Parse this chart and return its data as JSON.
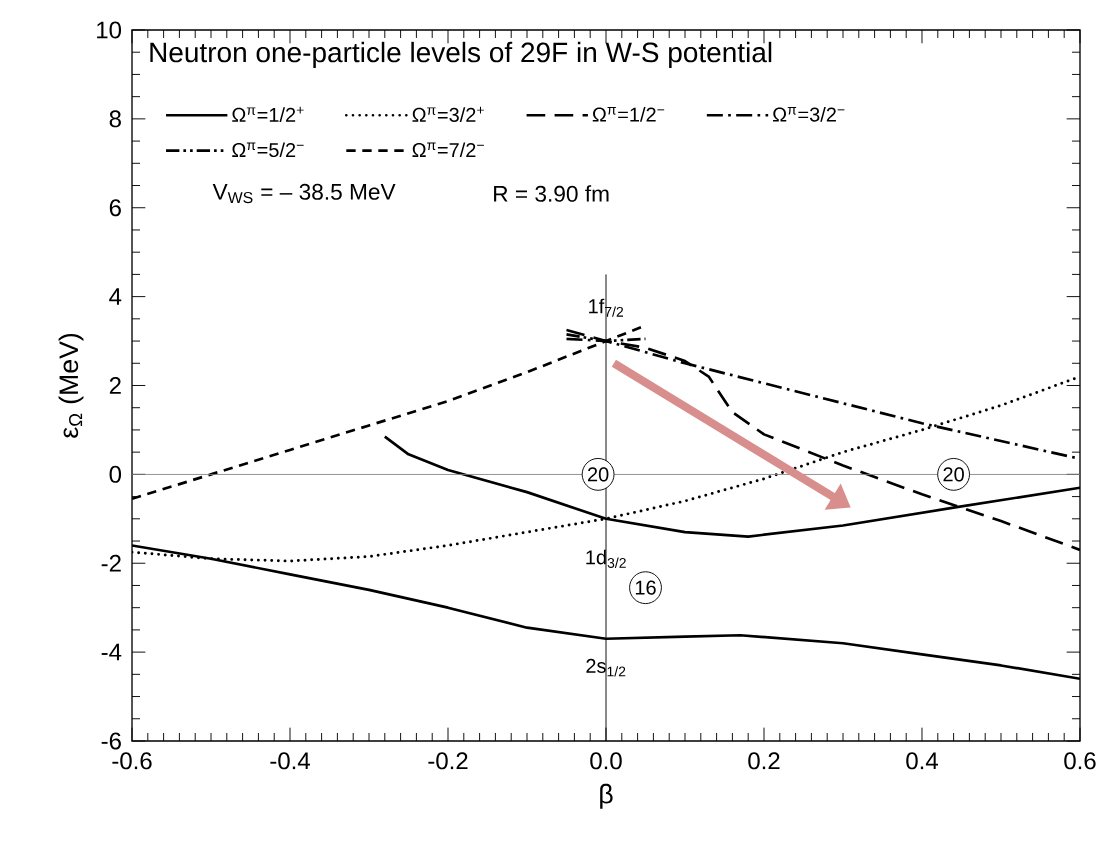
{
  "chart_data": {
    "type": "line",
    "title": "Neutron one-particle levels of 29F in W-S potential",
    "xlabel": "β",
    "ylabel": "ε$_{Ω}$  (MeV)",
    "xlim": [
      -0.6,
      0.6
    ],
    "ylim": [
      -6,
      10
    ],
    "xticks": [
      -0.6,
      -0.4,
      -0.2,
      {
        "value": 0,
        "label": "0.0"
      },
      0.2,
      0.4,
      0.6
    ],
    "yticks": [
      -6,
      -4,
      -2,
      0,
      2,
      4,
      6,
      8,
      10
    ],
    "grid": false,
    "legend": "top",
    "marker": "none",
    "series": [
      {
        "name": "Ω$^{π}$=1/2$^{+}$",
        "color": "#000000",
        "line_style": "solid",
        "x": [
          -0.6,
          -0.5,
          -0.4,
          -0.3,
          -0.2,
          -0.1,
          0,
          0.1,
          0.17,
          0.3,
          0.4,
          0.5,
          0.6,
          null,
          -0.28,
          -0.25,
          -0.2,
          -0.1,
          0,
          0.1,
          0.18,
          0.3,
          0.44,
          0.6
        ],
        "values": [
          -1.6,
          -1.9,
          -2.25,
          -2.6,
          -3.0,
          -3.45,
          -3.7,
          -3.65,
          -3.62,
          -3.8,
          -4.05,
          -4.3,
          -4.6,
          null,
          0.85,
          0.45,
          0.1,
          -0.4,
          -1.0,
          -1.3,
          -1.4,
          -1.15,
          -0.75,
          -0.3
        ]
      },
      {
        "name": "Ω$^{π}$=3/2$^{+}$",
        "color": "#000000",
        "line_style": "dotted",
        "x": [
          -0.6,
          -0.5,
          -0.4,
          -0.3,
          -0.2,
          -0.1,
          0,
          0.1,
          0.2,
          0.3,
          0.4,
          0.5,
          0.6
        ],
        "values": [
          -1.75,
          -1.9,
          -1.95,
          -1.85,
          -1.6,
          -1.3,
          -1.0,
          -0.6,
          -0.1,
          0.5,
          1.0,
          1.55,
          2.2
        ]
      },
      {
        "name": "Ω$^{π}$=1/2$^{−}$",
        "color": "#000000",
        "line_style": "longdashed",
        "x": [
          -0.05,
          0,
          0.05,
          0.1,
          0.13,
          0.16,
          0.2,
          0.3,
          0.4,
          0.5,
          0.6
        ],
        "values": [
          3.25,
          3.0,
          2.85,
          2.55,
          2.2,
          1.4,
          0.9,
          0.2,
          -0.45,
          -1.05,
          -1.7
        ]
      },
      {
        "name": "Ω$^{π}$=3/2$^{−}$",
        "color": "#000000",
        "line_style": "dashdot",
        "x": [
          -0.05,
          0,
          0.1,
          0.2,
          0.3,
          0.4,
          0.5,
          0.6
        ],
        "values": [
          3.05,
          3.0,
          2.5,
          2.05,
          1.6,
          1.15,
          0.75,
          0.35
        ]
      },
      {
        "name": "Ω$^{π}$=5/2$^{−}$",
        "color": "#000000",
        "line_style": "dashdotdot",
        "x": [
          -0.05,
          0,
          0.05
        ],
        "values": [
          3.15,
          3.0,
          3.05
        ]
      },
      {
        "name": "Ω$^{π}$=7/2$^{−}$",
        "color": "#000000",
        "line_style": "dashed",
        "x": [
          -0.6,
          -0.5,
          -0.4,
          -0.3,
          -0.2,
          -0.1,
          0,
          0.05
        ],
        "values": [
          -0.55,
          0.0,
          0.55,
          1.1,
          1.65,
          2.3,
          3.0,
          3.35
        ]
      }
    ],
    "ref_lines": [
      {
        "axis": "y",
        "value": 0,
        "color": "#808080"
      },
      {
        "axis": "x",
        "value": 0,
        "color": "#000000"
      }
    ],
    "annotations": [
      {
        "text": "1f$_{7/2}$",
        "x": 0,
        "y": 3.75
      },
      {
        "text": "1d$_{3/2}$",
        "x": 0,
        "y": -1.9
      },
      {
        "text": "2s$_{1/2}$",
        "x": 0,
        "y": -4.35
      },
      {
        "text": "20",
        "x": -0.01,
        "y": 0
      },
      {
        "text": "20",
        "x": 0.44,
        "y": 0
      },
      {
        "text": "16",
        "x": 0.05,
        "y": -2.55
      },
      "V$_{WS}$ = – 38.5 MeV",
      "R = 3.90 fm"
    ]
  }
}
